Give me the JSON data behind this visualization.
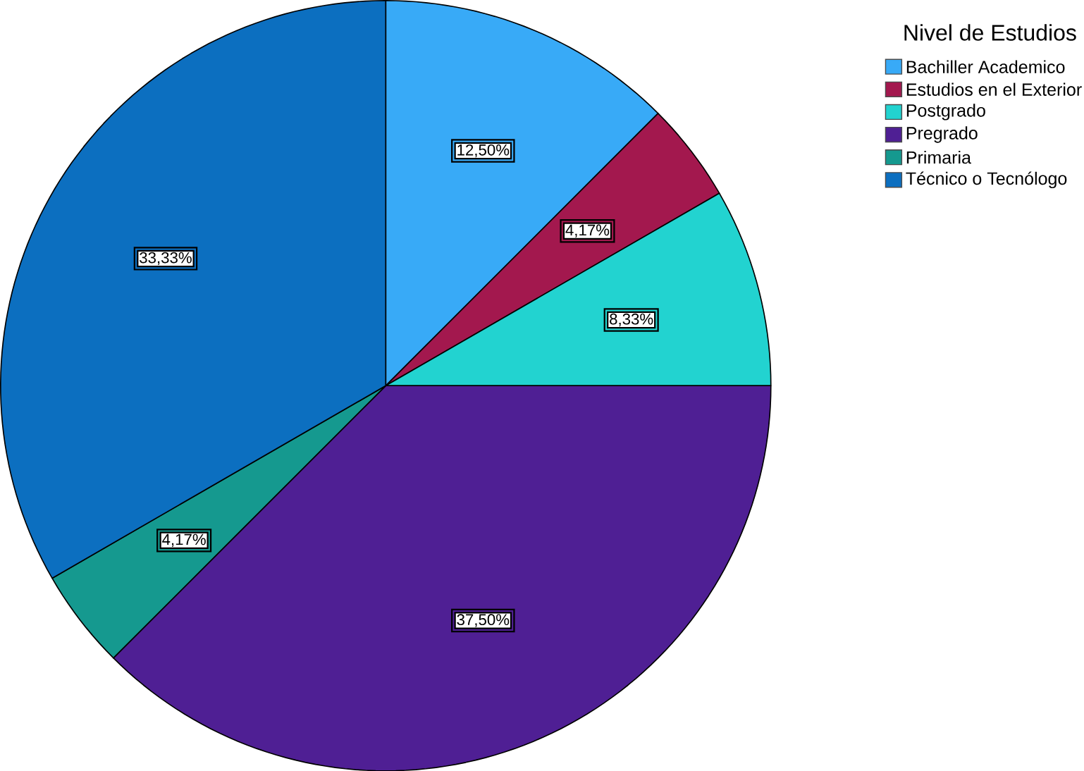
{
  "chart_data": {
    "type": "pie",
    "legend_title": "Nivel de Estudios",
    "legend": "top right",
    "categories": [
      "Bachiller Academico",
      "Estudios en el Exterior",
      "Postgrado",
      "Pregrado",
      "Primaria",
      "Técnico o Tecnólogo"
    ],
    "values": [
      12.5,
      4.17,
      8.33,
      37.5,
      4.17,
      33.33
    ],
    "value_labels": [
      "12,50%",
      "4,17%",
      "8,33%",
      "37,50%",
      "4,17%",
      "33,33%"
    ],
    "colors": [
      "#38aaf7",
      "#a3184e",
      "#22d3d0",
      "#4f1f94",
      "#15998f",
      "#0c6fc0"
    ]
  }
}
